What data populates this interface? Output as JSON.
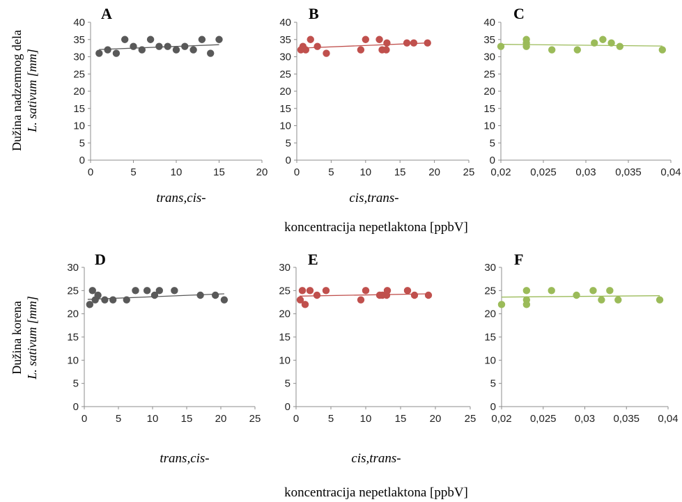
{
  "figure": {
    "row1_ylabel_line1": "Dužina nadzemnog dela",
    "row1_ylabel_line2": "L. sativum [mm]",
    "row2_ylabel_line1": "Dužina korena",
    "row2_ylabel_line2": "L. sativum [mm]",
    "common_xlabel_row1": "koncentracija nepetlaktona  [ppbV]",
    "common_xlabel_row2": "koncentracija nepetlaktona  [ppbV]"
  },
  "chart_data": [
    {
      "type": "scatter",
      "panel": "A",
      "xlabel": "trans,cis-",
      "xlim": [
        0,
        20
      ],
      "ylim": [
        0,
        40
      ],
      "xticks": [
        "0",
        "5",
        "10",
        "15",
        "20"
      ],
      "yticks": [
        "0",
        "5",
        "10",
        "15",
        "20",
        "25",
        "30",
        "35",
        "40"
      ],
      "color": "#595959",
      "x": [
        1,
        2,
        3,
        4,
        5,
        6,
        7,
        8,
        9,
        10,
        11,
        12,
        13,
        14,
        15
      ],
      "y": [
        31,
        32,
        31,
        35,
        33,
        32,
        35,
        33,
        33,
        32,
        33,
        32,
        35,
        31,
        35
      ],
      "trendline": [
        [
          1,
          32.1
        ],
        [
          15,
          33.5
        ]
      ]
    },
    {
      "type": "scatter",
      "panel": "B",
      "xlabel": "cis,trans-",
      "xlim": [
        0,
        25
      ],
      "ylim": [
        0,
        40
      ],
      "xticks": [
        "0",
        "5",
        "10",
        "15",
        "20",
        "25"
      ],
      "yticks": [
        "0",
        "5",
        "10",
        "15",
        "20",
        "25",
        "30",
        "35",
        "40"
      ],
      "color": "#c0504d",
      "x": [
        0.6,
        0.9,
        1.3,
        2.0,
        3.0,
        4.3,
        9.3,
        10.0,
        12.0,
        12.4,
        13.0,
        13.1,
        16.0,
        17.0,
        19.0
      ],
      "y": [
        32,
        33,
        32,
        35,
        33,
        31,
        32,
        35,
        35,
        32,
        32,
        34,
        34,
        34,
        34
      ],
      "trendline": [
        [
          0.5,
          32.5
        ],
        [
          19,
          34.0
        ]
      ]
    },
    {
      "type": "scatter",
      "panel": "C",
      "xlim": [
        0.02,
        0.04
      ],
      "ylim": [
        0,
        40
      ],
      "xticks": [
        "0,02",
        "0,025",
        "0,03",
        "0,035",
        "0,04"
      ],
      "yticks": [
        "0",
        "5",
        "10",
        "15",
        "20",
        "25",
        "30",
        "35",
        "40"
      ],
      "color": "#9bbb59",
      "x": [
        0.02,
        0.023,
        0.023,
        0.023,
        0.026,
        0.029,
        0.031,
        0.032,
        0.033,
        0.034,
        0.039
      ],
      "y": [
        33,
        33,
        34,
        35,
        32,
        32,
        34,
        35,
        34,
        33,
        32
      ],
      "trendline": [
        [
          0.02,
          33.6
        ],
        [
          0.039,
          33.1
        ]
      ]
    },
    {
      "type": "scatter",
      "panel": "D",
      "xlabel": "trans,cis-",
      "xlim": [
        0,
        25
      ],
      "ylim": [
        0,
        30
      ],
      "xticks": [
        "0",
        "5",
        "10",
        "15",
        "20",
        "25"
      ],
      "yticks": [
        "0",
        "5",
        "10",
        "15",
        "20",
        "25",
        "30"
      ],
      "color": "#595959",
      "x": [
        0.8,
        1.2,
        1.6,
        2.0,
        3.0,
        4.2,
        6.2,
        7.5,
        9.2,
        10.3,
        11.0,
        13.2,
        17.0,
        19.2,
        20.5
      ],
      "y": [
        22,
        25,
        23,
        24,
        23,
        23,
        23,
        25,
        25,
        24,
        25,
        25,
        24,
        24,
        23
      ],
      "trendline": [
        [
          0.5,
          23.1
        ],
        [
          20.5,
          24.3
        ]
      ]
    },
    {
      "type": "scatter",
      "panel": "E",
      "xlabel": "cis,trans-",
      "xlim": [
        0,
        25
      ],
      "ylim": [
        0,
        30
      ],
      "xticks": [
        "0",
        "5",
        "10",
        "15",
        "20",
        "25"
      ],
      "yticks": [
        "0",
        "5",
        "10",
        "15",
        "20",
        "25",
        "30"
      ],
      "color": "#c0504d",
      "x": [
        0.6,
        0.9,
        1.3,
        2.0,
        3.0,
        4.3,
        9.3,
        10.0,
        12.0,
        12.4,
        13.0,
        13.1,
        16.0,
        17.0,
        19.0
      ],
      "y": [
        23,
        25,
        22,
        25,
        24,
        25,
        23,
        25,
        24,
        24,
        24,
        25,
        25,
        24,
        24
      ],
      "trendline": [
        [
          0.5,
          23.8
        ],
        [
          19,
          24.3
        ]
      ]
    },
    {
      "type": "scatter",
      "panel": "F",
      "xlim": [
        0.02,
        0.04
      ],
      "ylim": [
        0,
        30
      ],
      "xticks": [
        "0,02",
        "0,025",
        "0,03",
        "0,035",
        "0,04"
      ],
      "yticks": [
        "0",
        "5",
        "10",
        "15",
        "20",
        "25",
        "30"
      ],
      "color": "#9bbb59",
      "x": [
        0.02,
        0.023,
        0.023,
        0.023,
        0.026,
        0.029,
        0.031,
        0.032,
        0.033,
        0.034,
        0.039
      ],
      "y": [
        22,
        22,
        23,
        25,
        25,
        24,
        25,
        23,
        25,
        23,
        23
      ],
      "trendline": [
        [
          0.02,
          23.6
        ],
        [
          0.039,
          23.9
        ]
      ]
    }
  ]
}
